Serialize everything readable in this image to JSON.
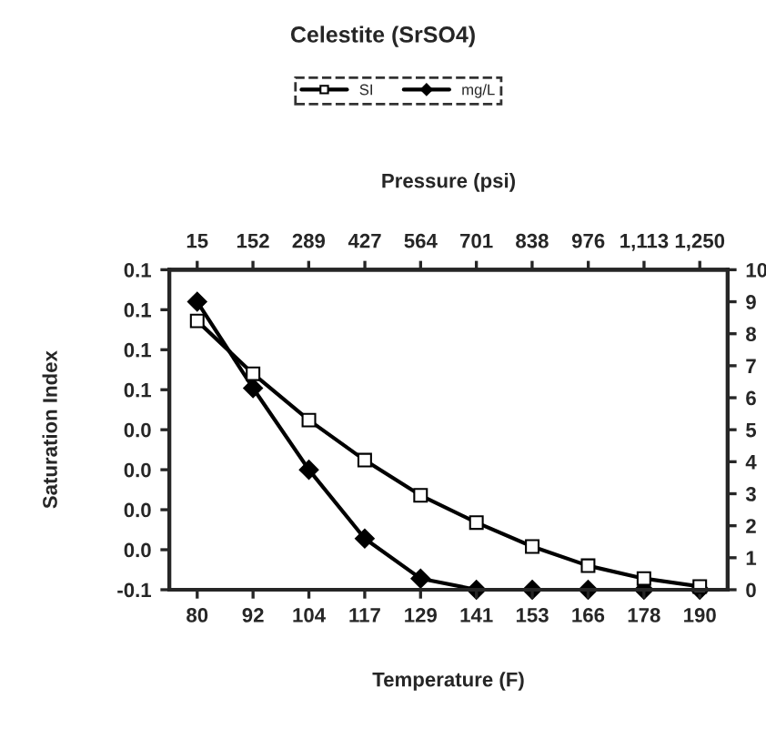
{
  "chart_data": {
    "type": "line",
    "title": "Celestite (SrSO4)",
    "xlabel": "Temperature (F)",
    "ylabel": "Saturation Index",
    "x2label": "Pressure (psi)",
    "categories": [
      "80",
      "92",
      "104",
      "117",
      "129",
      "141",
      "153",
      "166",
      "178",
      "190"
    ],
    "series": [
      {
        "name": "SI",
        "color": "#000000",
        "marker": "square",
        "values": [
          0.108,
          0.075,
          0.046,
          0.021,
          -0.001,
          -0.018,
          -0.033,
          -0.045,
          -0.053,
          -0.058
        ]
      },
      {
        "name": "mg/L",
        "color": "#000000",
        "marker": "diamond",
        "axis": "y2",
        "values": [
          9.0,
          6.3,
          3.75,
          1.6,
          0.35,
          0,
          0,
          0,
          0,
          0
        ]
      }
    ],
    "ylim": [
      -0.06,
      0.14
    ],
    "yticks": [
      {
        "value": -0.06,
        "label": "-0.1"
      },
      {
        "value": -0.035,
        "label": "0.0"
      },
      {
        "value": -0.01,
        "label": "0.0"
      },
      {
        "value": 0.015,
        "label": "0.0"
      },
      {
        "value": 0.04,
        "label": "0.0"
      },
      {
        "value": 0.065,
        "label": "0.1"
      },
      {
        "value": 0.09,
        "label": "0.1"
      },
      {
        "value": 0.115,
        "label": "0.1"
      },
      {
        "value": 0.14,
        "label": "0.1"
      }
    ],
    "y2lim": [
      0,
      10
    ],
    "y2ticks": [
      0,
      1,
      2,
      3,
      4,
      5,
      6,
      7,
      8,
      9,
      10
    ],
    "x2lim": [
      -53.6,
      1318.6
    ],
    "x2ticks": [
      15,
      152,
      289,
      427,
      564,
      701,
      838,
      976,
      {
        "value": 1113,
        "label": "1,113"
      },
      {
        "value": 1250,
        "label": "1,250"
      }
    ],
    "legend": "top",
    "grid": false
  }
}
